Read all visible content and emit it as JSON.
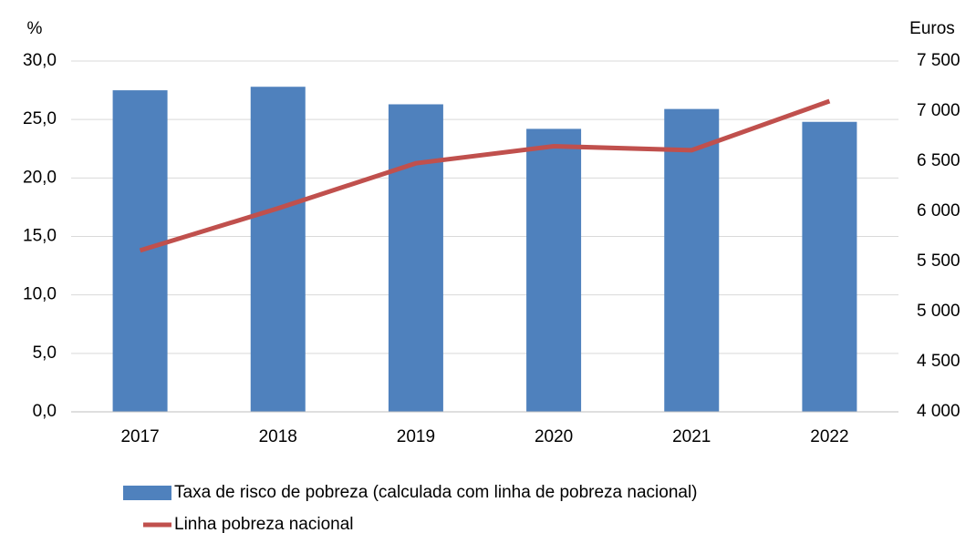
{
  "chart_data": {
    "type": "bar_line",
    "y_label": "%",
    "y2_label": "Euros",
    "categories": [
      "2017",
      "2018",
      "2019",
      "2020",
      "2021",
      "2022"
    ],
    "series": [
      {
        "name": "Taxa de risco de pobreza (calculada com linha de pobreza nacional)",
        "type": "bar",
        "color": "#4f81bd",
        "values": [
          27.5,
          27.8,
          26.3,
          24.2,
          25.9,
          24.8
        ]
      },
      {
        "name": "Linha pobreza nacional",
        "type": "line",
        "axis": "y2",
        "color": "#c0504d",
        "values": [
          5610,
          6030,
          6480,
          6650,
          6610,
          7100
        ]
      }
    ],
    "ylim": [
      0,
      30
    ],
    "yticks": [
      {
        "value": 0,
        "label": "0,0"
      },
      {
        "value": 5,
        "label": "5,0"
      },
      {
        "value": 10,
        "label": "10,0"
      },
      {
        "value": 15,
        "label": "15,0"
      },
      {
        "value": 20,
        "label": "20,0"
      },
      {
        "value": 25,
        "label": "25,0"
      },
      {
        "value": 30,
        "label": "30,0"
      }
    ],
    "y2lim": [
      4000,
      7500
    ],
    "y2ticks": [
      {
        "value": 4000,
        "label": "4 000"
      },
      {
        "value": 4500,
        "label": "4 500"
      },
      {
        "value": 5000,
        "label": "5 000"
      },
      {
        "value": 5500,
        "label": "5 500"
      },
      {
        "value": 6000,
        "label": "6 000"
      },
      {
        "value": 6500,
        "label": "6 500"
      },
      {
        "value": 7000,
        "label": "7 000"
      },
      {
        "value": 7500,
        "label": "7 500"
      }
    ],
    "grid": true
  }
}
